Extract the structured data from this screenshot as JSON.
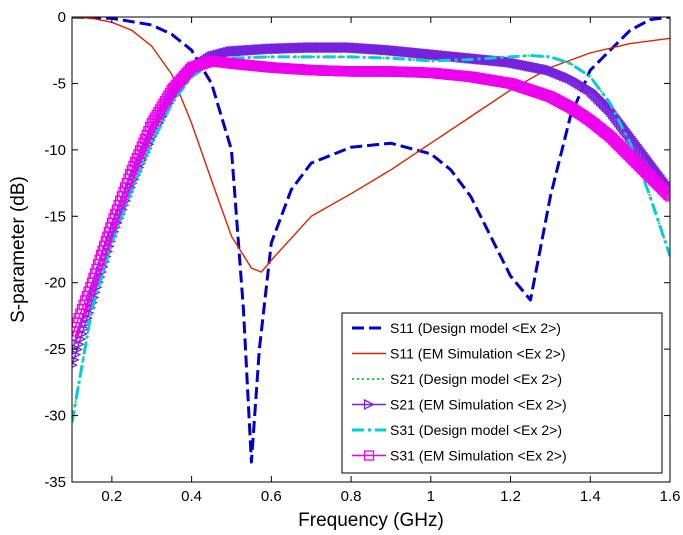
{
  "chart_data": {
    "type": "line",
    "xlabel": "Frequency (GHz)",
    "ylabel": "S-parameter (dB)",
    "xlim": [
      0.1,
      1.6
    ],
    "ylim": [
      -35,
      0
    ],
    "xticks": [
      0.2,
      0.4,
      0.6,
      0.8,
      1,
      1.2,
      1.4,
      1.6
    ],
    "xtick_labels": [
      "0.2",
      "0.4",
      "0.6",
      "0.8",
      "1",
      "1.2",
      "1.4",
      "1.6"
    ],
    "yticks": [
      0,
      -5,
      -10,
      -15,
      -20,
      -25,
      -30,
      -35
    ],
    "ytick_labels": [
      "0",
      "-5",
      "-10",
      "-15",
      "-20",
      "-25",
      "-30",
      "-35"
    ],
    "grid": false,
    "legend_position": "bottom-right",
    "series": [
      {
        "name": "S11 (Design model <Ex 2>)",
        "color": "#0000CC",
        "style": "dashed",
        "marker": "none",
        "x": [
          0.1,
          0.2,
          0.3,
          0.35,
          0.4,
          0.45,
          0.5,
          0.53,
          0.55,
          0.57,
          0.6,
          0.65,
          0.7,
          0.8,
          0.9,
          1.0,
          1.05,
          1.1,
          1.15,
          1.2,
          1.25,
          1.3,
          1.35,
          1.4,
          1.5,
          1.55,
          1.6
        ],
        "y": [
          0,
          -0.1,
          -0.6,
          -1.3,
          -2.5,
          -5.0,
          -10.0,
          -22.0,
          -33.5,
          -25.0,
          -17.0,
          -13.0,
          -11.0,
          -9.8,
          -9.5,
          -10.3,
          -11.5,
          -13.5,
          -16.5,
          -19.5,
          -21.3,
          -13.5,
          -7.5,
          -4.0,
          -1.0,
          -0.2,
          0
        ]
      },
      {
        "name": "S11 (EM Simulation <Ex 2>)",
        "color": "#DD2200",
        "style": "solid",
        "marker": "none",
        "x": [
          0.1,
          0.15,
          0.2,
          0.25,
          0.3,
          0.35,
          0.4,
          0.45,
          0.5,
          0.55,
          0.575,
          0.6,
          0.7,
          0.8,
          0.9,
          1.0,
          1.1,
          1.2,
          1.3,
          1.4,
          1.5,
          1.6
        ],
        "y": [
          0,
          -0.1,
          -0.4,
          -1.0,
          -2.2,
          -4.3,
          -8.0,
          -12.3,
          -16.5,
          -18.9,
          -19.2,
          -18.3,
          -15.0,
          -13.3,
          -11.5,
          -9.5,
          -7.5,
          -5.5,
          -3.8,
          -2.7,
          -2.0,
          -1.6
        ]
      },
      {
        "name": "S21 (Design model <Ex 2>)",
        "color": "#22CC44",
        "style": "dotted",
        "marker": "none",
        "x": [
          0.1,
          0.15,
          0.2,
          0.25,
          0.3,
          0.35,
          0.4,
          0.45,
          0.5,
          0.6,
          0.7,
          0.8,
          0.9,
          1.0,
          1.1,
          1.2,
          1.25,
          1.3,
          1.35,
          1.4,
          1.45,
          1.5,
          1.55,
          1.6
        ],
        "y": [
          -30.5,
          -22.0,
          -17.0,
          -13.0,
          -9.5,
          -6.5,
          -4.5,
          -3.5,
          -3.1,
          -3.0,
          -3.0,
          -3.0,
          -3.1,
          -3.3,
          -3.2,
          -3.0,
          -2.9,
          -3.0,
          -3.5,
          -4.5,
          -6.5,
          -9.5,
          -13.5,
          -18.0
        ]
      },
      {
        "name": "S21 (EM Simulation <Ex 2>)",
        "color": "#7722DD",
        "style": "solid",
        "marker": "triangle-right",
        "x": [
          0.1,
          0.15,
          0.2,
          0.25,
          0.3,
          0.35,
          0.4,
          0.45,
          0.5,
          0.6,
          0.7,
          0.8,
          0.9,
          1.0,
          1.1,
          1.2,
          1.3,
          1.35,
          1.4,
          1.45,
          1.5,
          1.55,
          1.6
        ],
        "y": [
          -26.2,
          -21.5,
          -16.5,
          -12.5,
          -9.0,
          -6.0,
          -4.0,
          -3.0,
          -2.6,
          -2.4,
          -2.3,
          -2.3,
          -2.5,
          -2.8,
          -3.1,
          -3.4,
          -4.0,
          -4.6,
          -5.5,
          -7.0,
          -9.0,
          -11.0,
          -13.0
        ]
      },
      {
        "name": "S31 (Design model <Ex 2>)",
        "color": "#00CCDD",
        "style": "dashdot",
        "marker": "none",
        "x": [
          0.1,
          0.15,
          0.2,
          0.25,
          0.3,
          0.35,
          0.4,
          0.45,
          0.5,
          0.6,
          0.7,
          0.8,
          0.9,
          1.0,
          1.1,
          1.2,
          1.25,
          1.3,
          1.35,
          1.4,
          1.45,
          1.5,
          1.55,
          1.6
        ],
        "y": [
          -30.5,
          -22.0,
          -17.0,
          -13.0,
          -9.5,
          -6.5,
          -4.5,
          -3.5,
          -3.1,
          -3.0,
          -3.0,
          -3.0,
          -3.1,
          -3.3,
          -3.2,
          -3.0,
          -2.9,
          -3.0,
          -3.5,
          -4.5,
          -6.5,
          -9.5,
          -13.5,
          -18.0
        ]
      },
      {
        "name": "S31 (EM Simulation <Ex 2>)",
        "color": "#EE00EE",
        "style": "solid",
        "marker": "square",
        "x": [
          0.1,
          0.15,
          0.2,
          0.25,
          0.3,
          0.35,
          0.4,
          0.45,
          0.5,
          0.6,
          0.7,
          0.8,
          0.9,
          1.0,
          1.1,
          1.2,
          1.3,
          1.35,
          1.4,
          1.45,
          1.5,
          1.55,
          1.6
        ],
        "y": [
          -24.0,
          -20.0,
          -15.5,
          -11.5,
          -8.0,
          -5.5,
          -3.8,
          -3.3,
          -3.5,
          -3.8,
          -4.0,
          -4.1,
          -4.1,
          -4.2,
          -4.5,
          -5.0,
          -6.0,
          -6.8,
          -7.8,
          -9.0,
          -10.5,
          -12.0,
          -13.5
        ]
      }
    ]
  }
}
